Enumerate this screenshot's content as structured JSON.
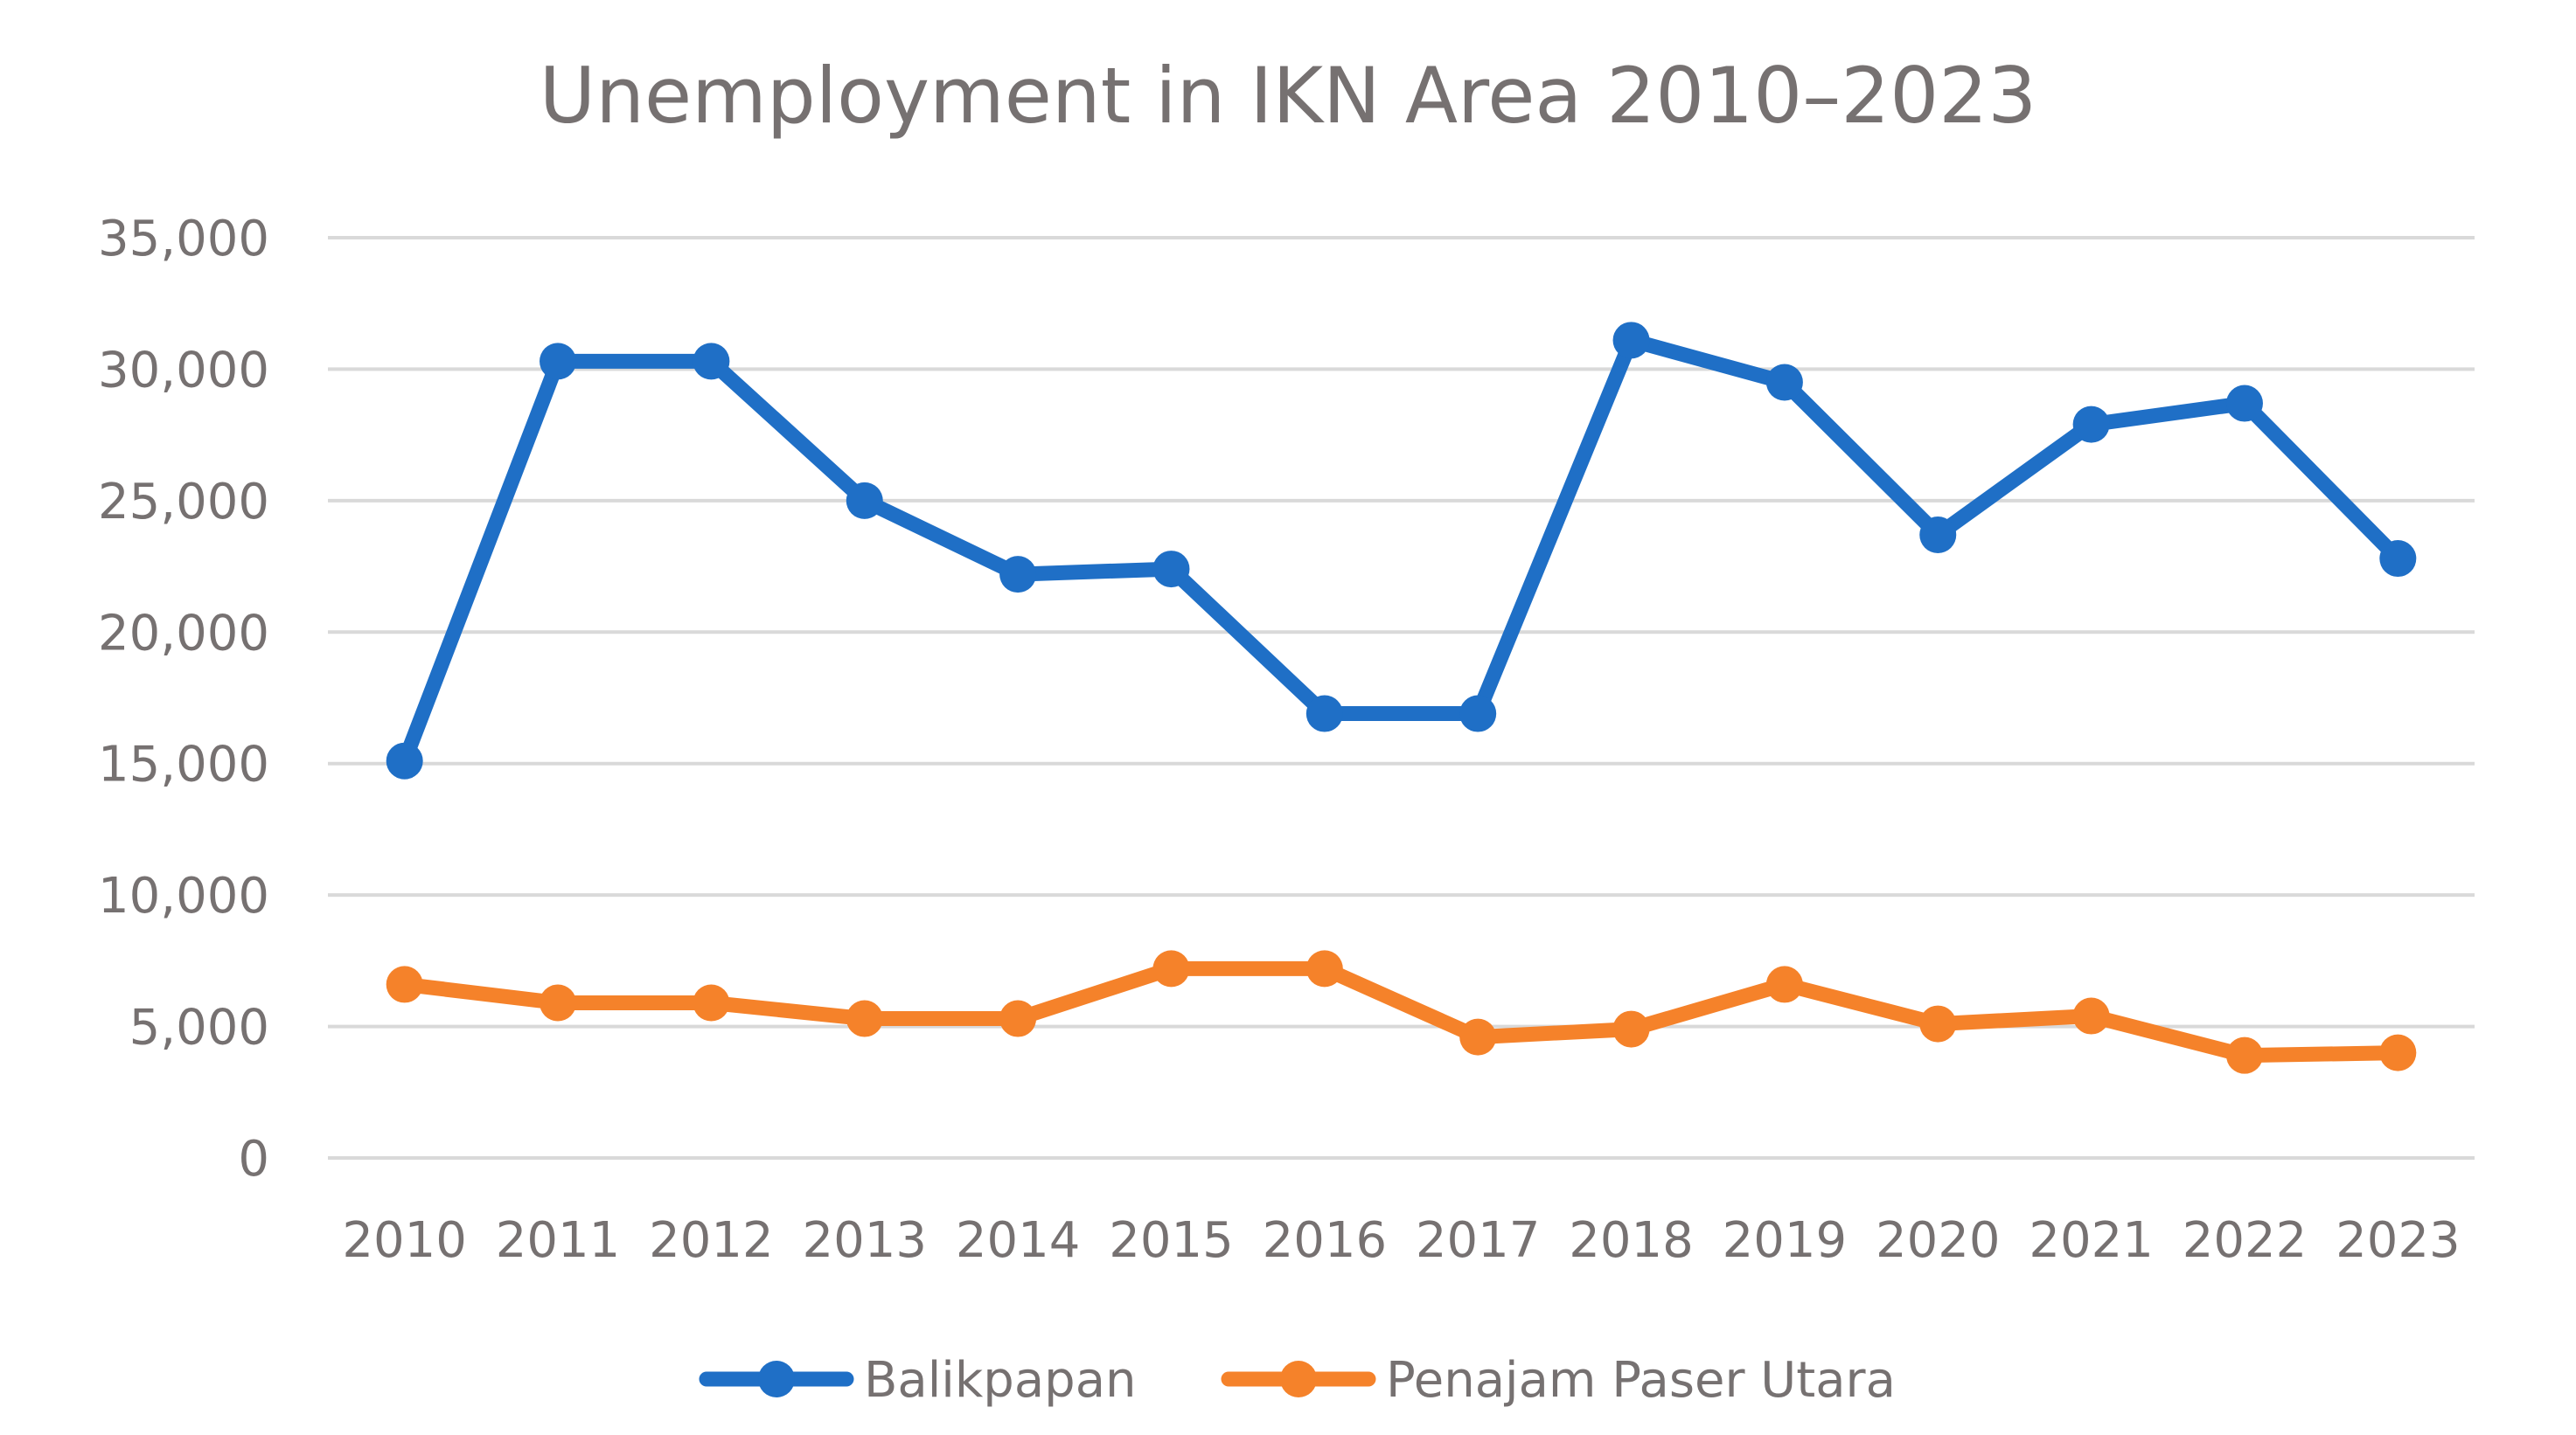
{
  "chart_data": {
    "type": "line",
    "title": "Unemployment in IKN Area 2010–2023",
    "xlabel": "",
    "ylabel": "",
    "x": [
      "2010",
      "2011",
      "2012",
      "2013",
      "2014",
      "2015",
      "2016",
      "2017",
      "2018",
      "2019",
      "2020",
      "2021",
      "2022",
      "2023"
    ],
    "ylim": [
      0,
      35000
    ],
    "yticks": [
      0,
      5000,
      10000,
      15000,
      20000,
      25000,
      30000,
      35000
    ],
    "ytick_labels": [
      "0",
      "5,000",
      "10,000",
      "15,000",
      "20,000",
      "25,000",
      "30,000",
      "35,000"
    ],
    "grid": true,
    "legend_position": "bottom",
    "markers": true,
    "series": [
      {
        "name": "Balikpapan",
        "color": "#1f6fc6",
        "values": [
          15100,
          30300,
          30300,
          25000,
          22200,
          22400,
          16900,
          16900,
          31100,
          29500,
          23700,
          27900,
          28700,
          22800
        ]
      },
      {
        "name": "Penajam Paser Utara",
        "color": "#f5822a",
        "values": [
          6600,
          5900,
          5900,
          5300,
          5300,
          7200,
          7200,
          4600,
          4900,
          6600,
          5100,
          5400,
          3900,
          4000
        ]
      }
    ]
  }
}
